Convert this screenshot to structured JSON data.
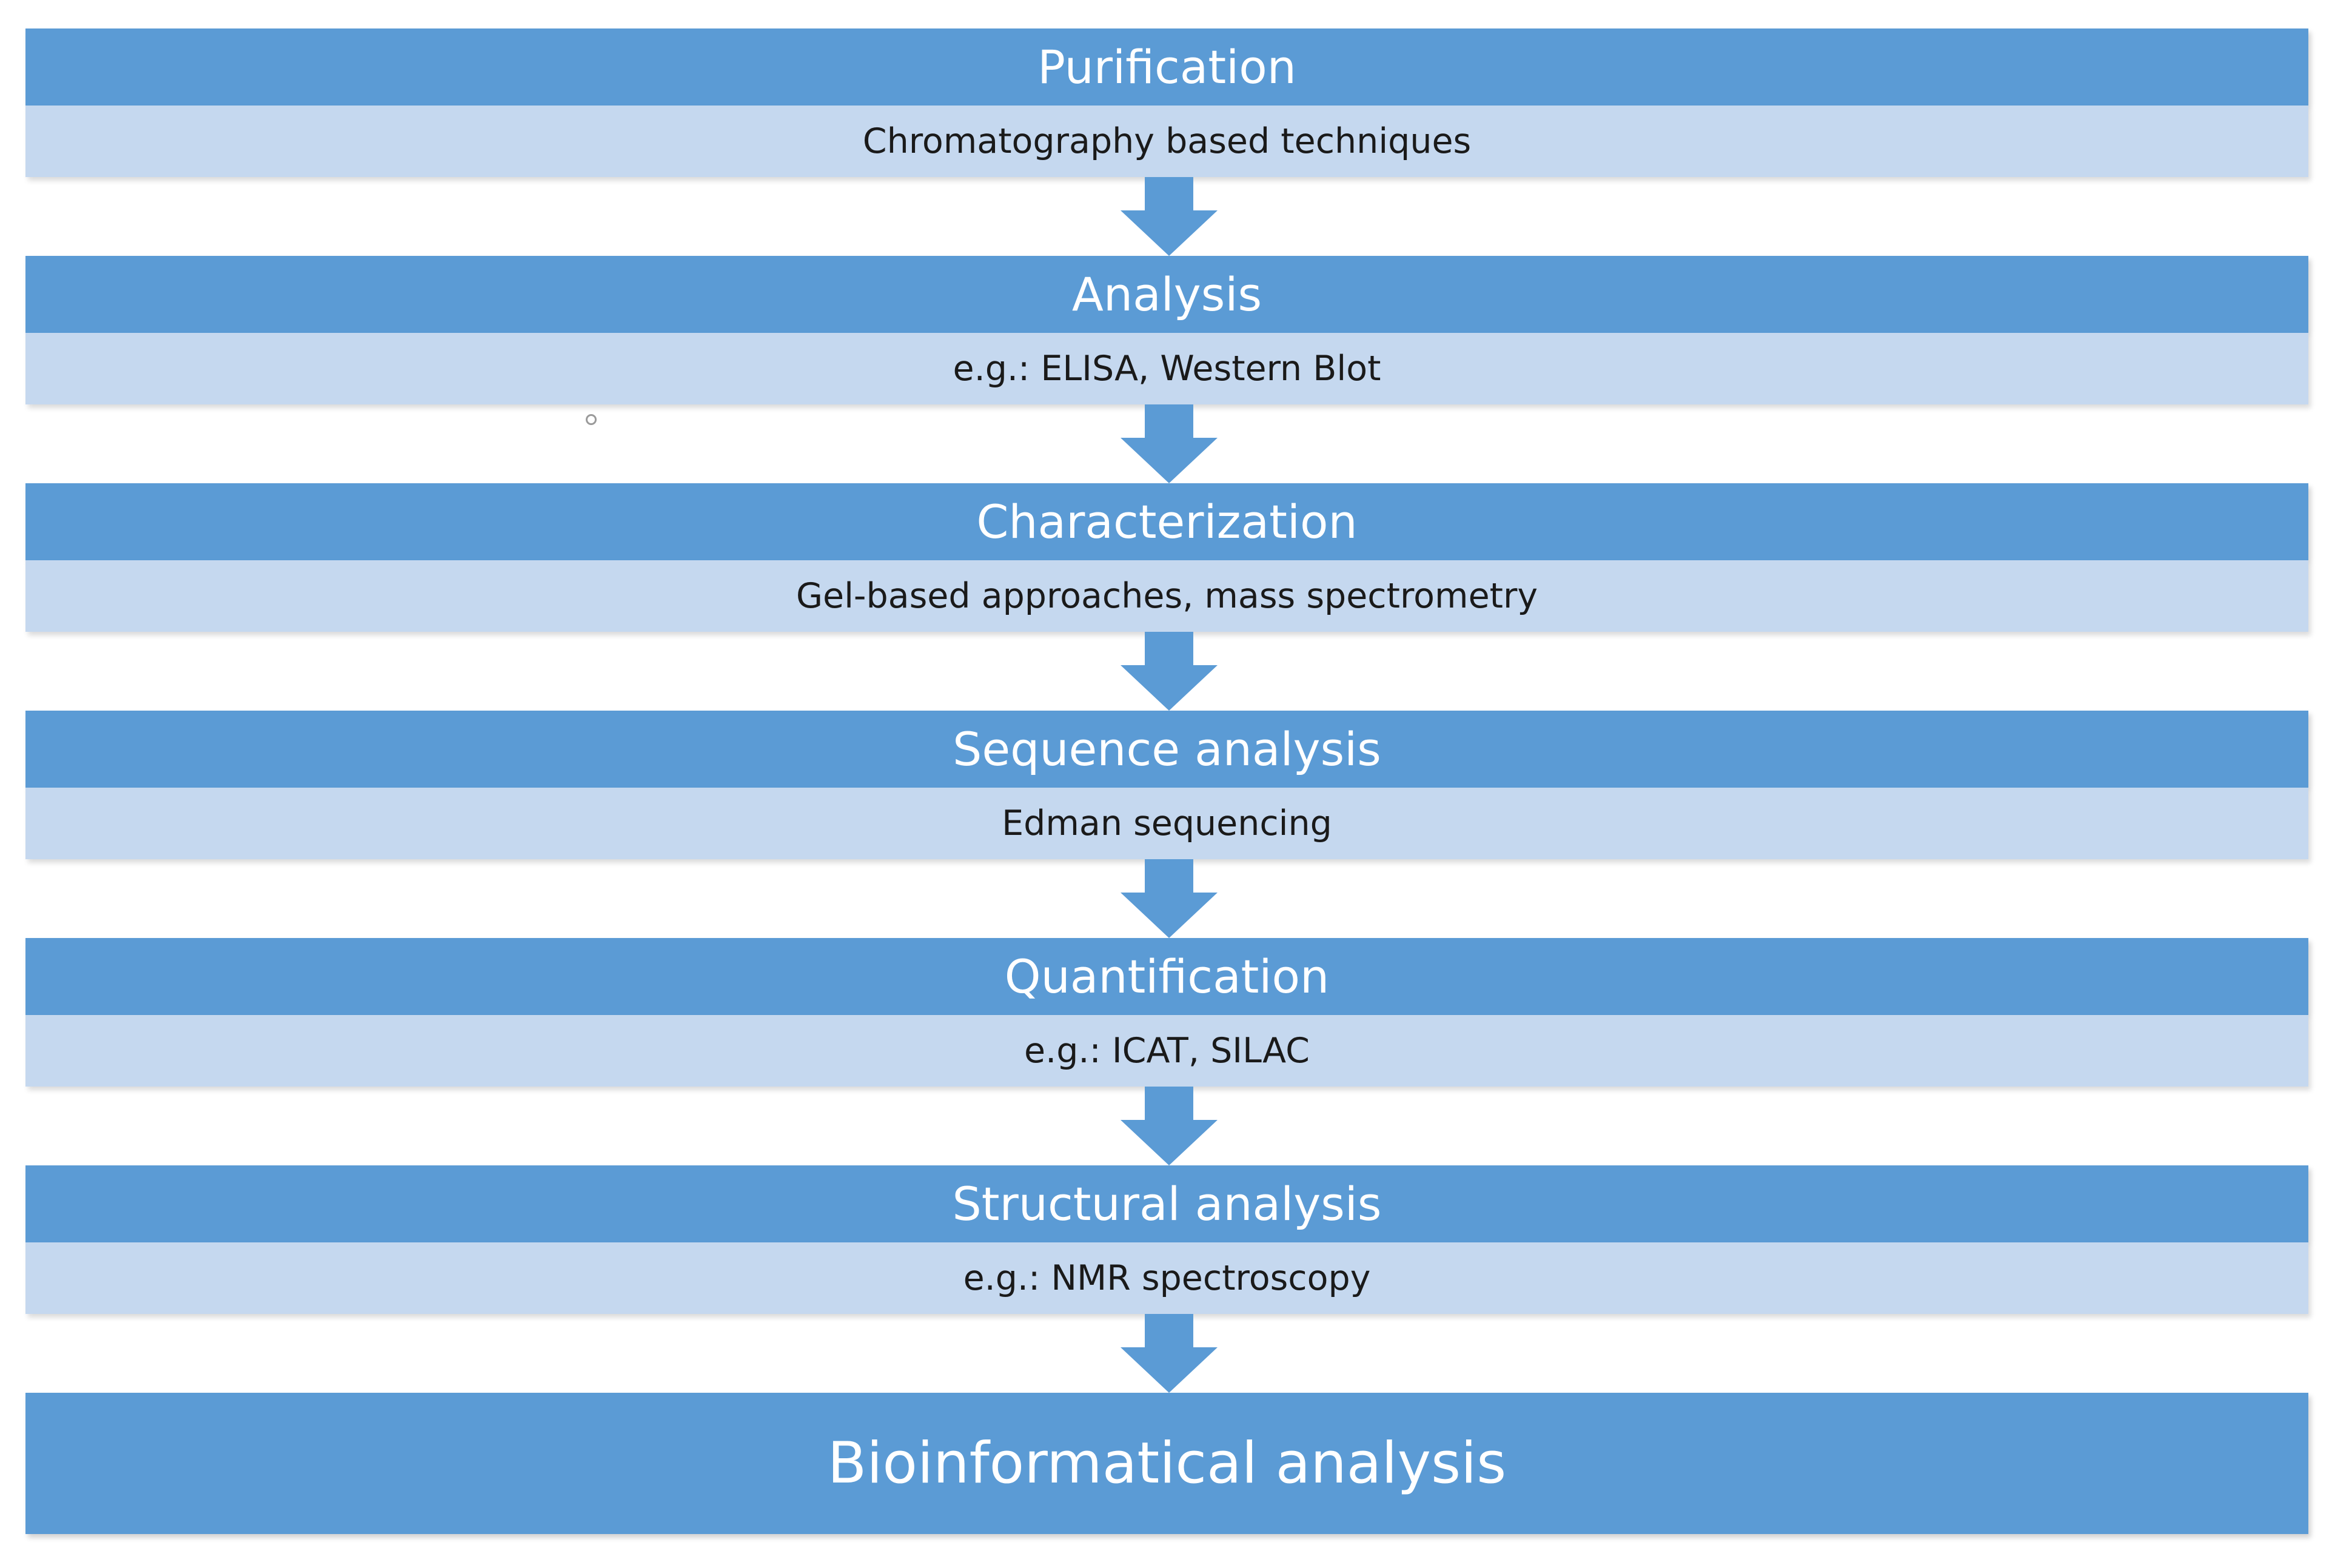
{
  "diagram": {
    "steps": [
      {
        "title": "Purification",
        "detail": "Chromatography based techniques"
      },
      {
        "title": "Analysis",
        "detail": "e.g.: ELISA, Western Blot"
      },
      {
        "title": "Characterization",
        "detail": "Gel-based approaches, mass spectrometry"
      },
      {
        "title": "Sequence analysis",
        "detail": "Edman sequencing"
      },
      {
        "title": "Quantification",
        "detail": "e.g.: ICAT, SILAC"
      },
      {
        "title": "Structural analysis",
        "detail": "e.g.: NMR spectroscopy"
      }
    ],
    "final_step": {
      "title": "Bioinformatical analysis"
    },
    "connector": "down-arrow-icon"
  },
  "colors": {
    "header_fill": "#5b9bd5",
    "detail_fill": "#c5d8ef",
    "arrow_fill": "#5b9bd5",
    "header_text": "#ffffff",
    "detail_text": "#1a1a1a"
  }
}
